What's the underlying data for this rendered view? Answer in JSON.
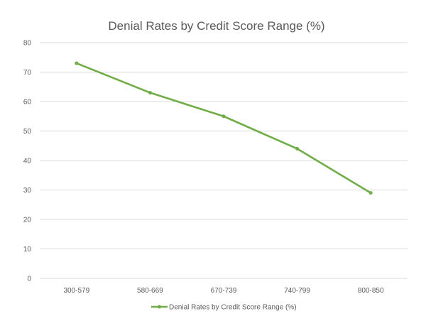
{
  "chart_data": {
    "type": "line",
    "title": "Denial Rates by Credit Score Range (%)",
    "xlabel": "",
    "ylabel": "",
    "categories": [
      "300-579",
      "580-669",
      "670-739",
      "740-799",
      "800-850"
    ],
    "series": [
      {
        "name": "Denial Rates by Credit Score Range (%)",
        "values": [
          73,
          63,
          55,
          44,
          29
        ],
        "color": "#70ad47"
      }
    ],
    "ylim": [
      0,
      80
    ],
    "yticks": [
      0,
      10,
      20,
      30,
      40,
      50,
      60,
      70,
      80
    ],
    "grid": true,
    "legend": "bottom"
  }
}
